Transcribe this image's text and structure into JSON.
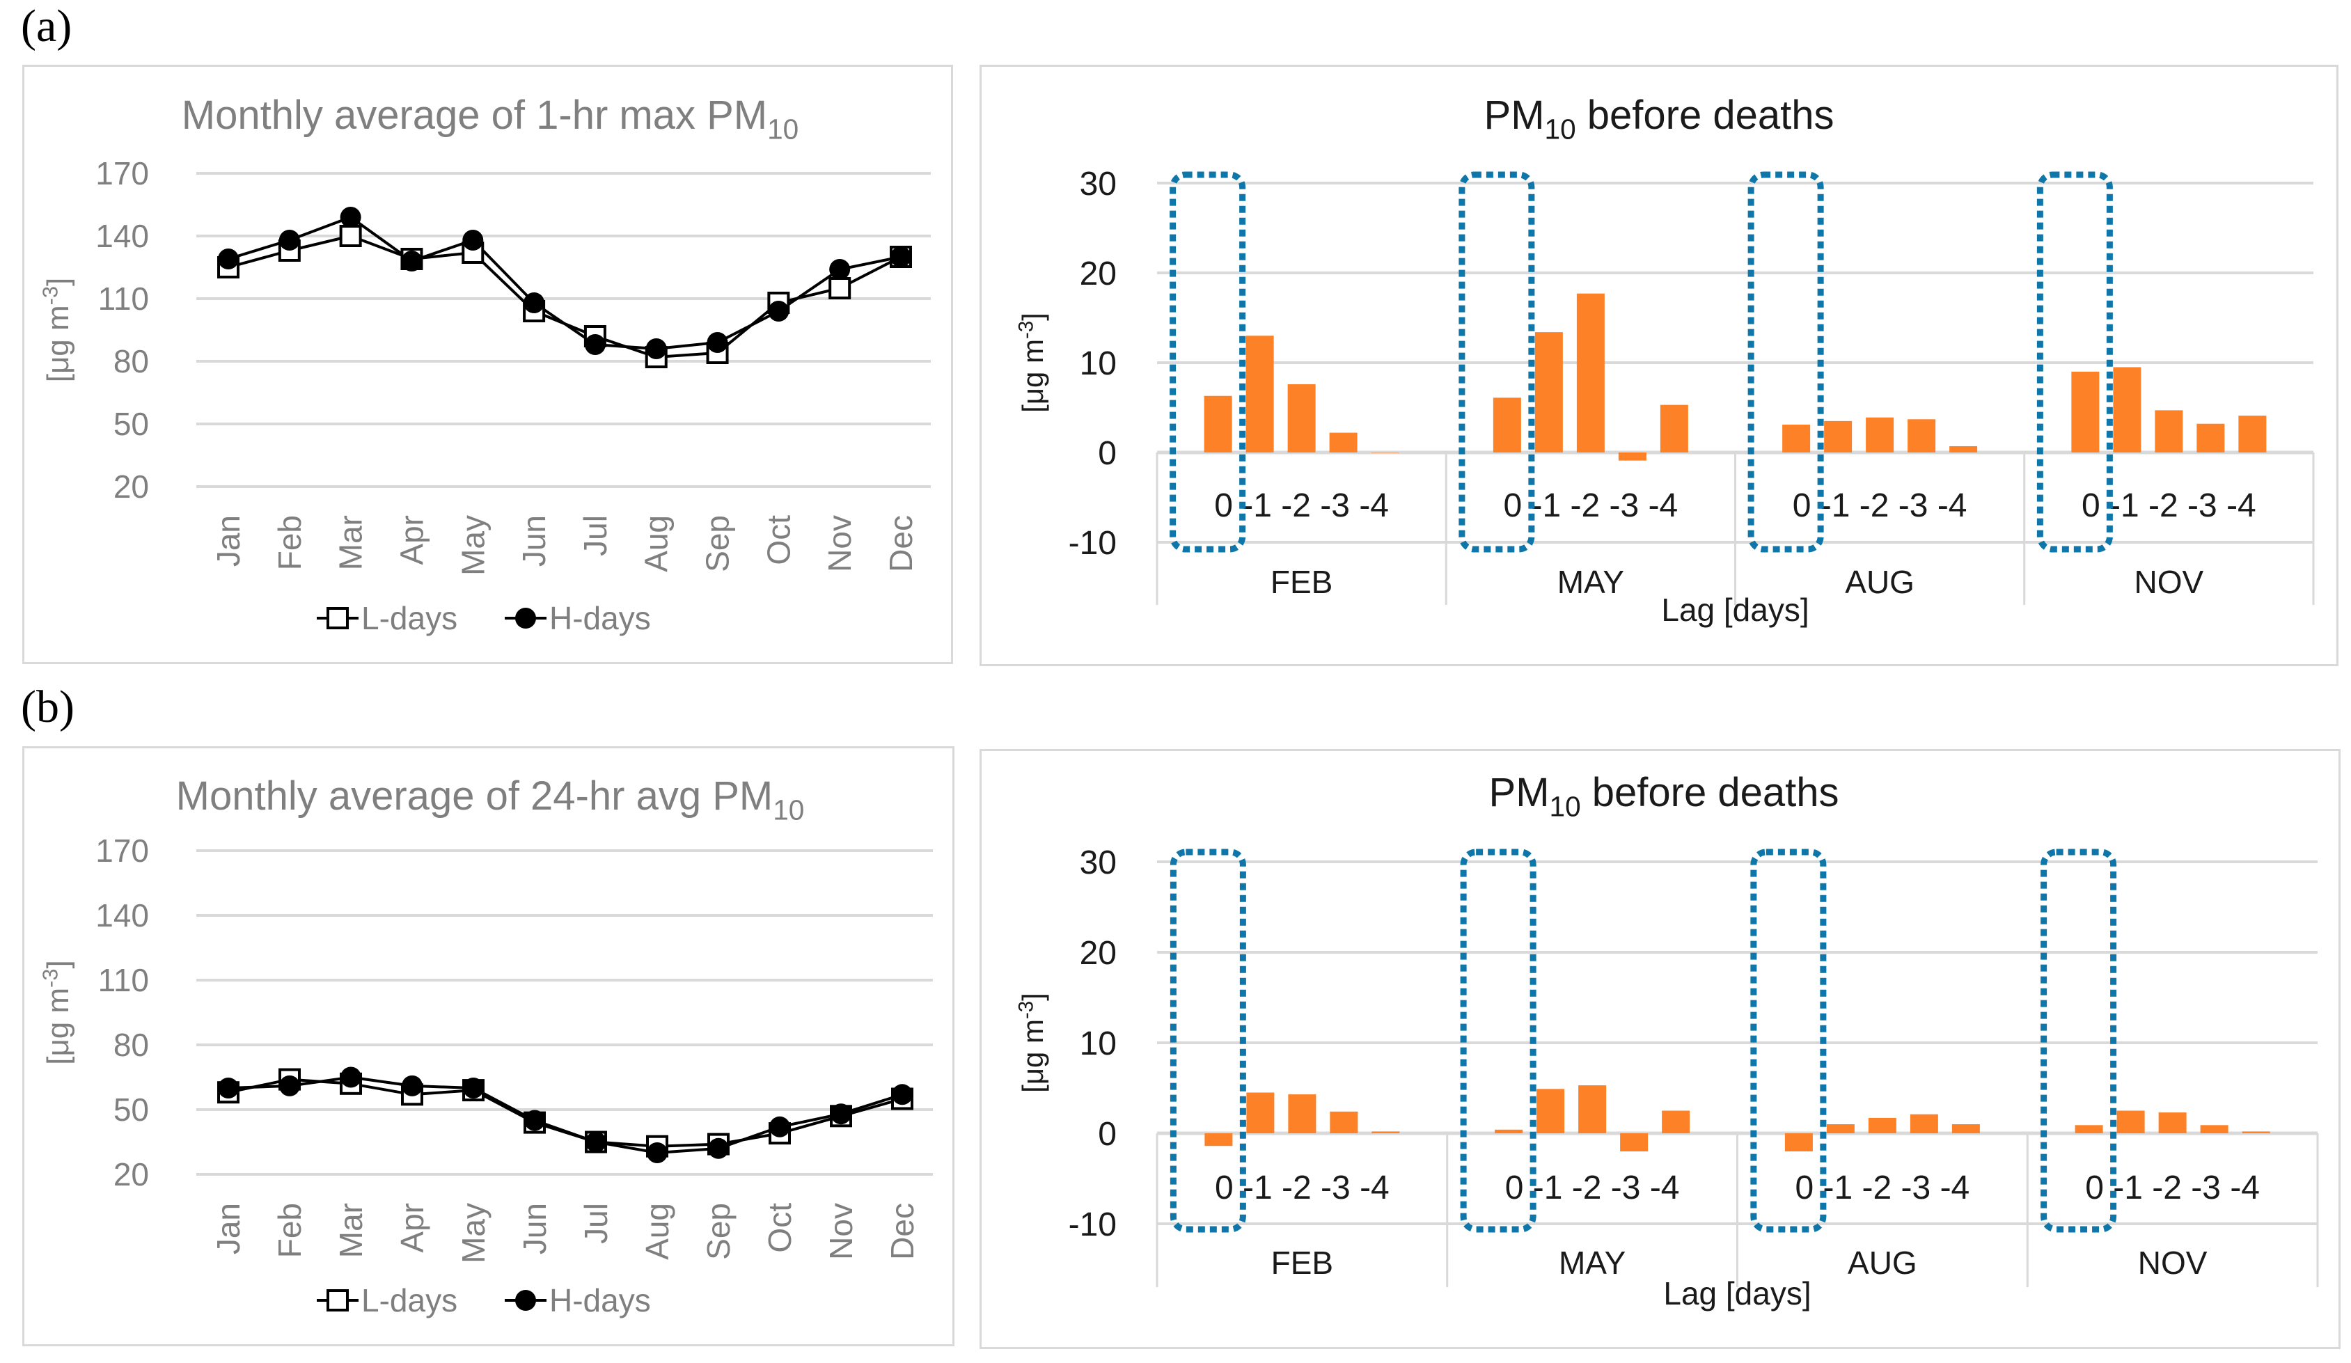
{
  "labels": {
    "a": "(a)",
    "b": "(b)"
  },
  "chart_data": [
    {
      "id": "a-line",
      "type": "line",
      "title": "Monthly average of 1-hr max PM",
      "title_sub": "10",
      "ylabel": "[μg m",
      "ylabel_sup": "-3",
      "ylabel_end": "]",
      "ylim": [
        20,
        170
      ],
      "yticks": [
        20,
        50,
        80,
        110,
        140,
        170
      ],
      "grid": true,
      "categories": [
        "Jan",
        "Feb",
        "Mar",
        "Apr",
        "May",
        "Jun",
        "Jul",
        "Aug",
        "Sep",
        "Oct",
        "Nov",
        "Dec"
      ],
      "legend_position": "bottom",
      "series": [
        {
          "name": "L-days",
          "marker": "open-square",
          "values": [
            125,
            133,
            140,
            129,
            132,
            104,
            92,
            82,
            84,
            108,
            115,
            130
          ]
        },
        {
          "name": "H-days",
          "marker": "filled-circle",
          "values": [
            129,
            138,
            149,
            128,
            138,
            108,
            88,
            86,
            89,
            104,
            124,
            130
          ]
        }
      ]
    },
    {
      "id": "a-bar",
      "type": "bar",
      "title": "PM",
      "title_sub": "10",
      "title_end": " before deaths",
      "ylabel": "[μg m",
      "ylabel_sup": "-3",
      "ylabel_end": "]",
      "xlabel": "Lag [days]",
      "ylim": [
        -10,
        30
      ],
      "yticks": [
        -10,
        0,
        10,
        20,
        30
      ],
      "grid": true,
      "groups": [
        "FEB",
        "MAY",
        "AUG",
        "NOV"
      ],
      "lags": [
        "0",
        "-1",
        "-2",
        "-3",
        "-4"
      ],
      "highlight": "lag 0 (dotted box)",
      "values": [
        [
          6.3,
          13.0,
          7.6,
          2.2,
          0.0
        ],
        [
          6.1,
          13.4,
          17.7,
          -0.9,
          5.3
        ],
        [
          3.1,
          3.5,
          3.9,
          3.7,
          0.7
        ],
        [
          9.0,
          9.5,
          4.7,
          3.2,
          4.1
        ]
      ],
      "bar_color": "#fd8127",
      "box_color": "#0e76a8"
    },
    {
      "id": "b-line",
      "type": "line",
      "title": "Monthly average of 24-hr avg PM",
      "title_sub": "10",
      "ylabel": "[μg m",
      "ylabel_sup": "-3",
      "ylabel_end": "]",
      "ylim": [
        20,
        170
      ],
      "yticks": [
        20,
        50,
        80,
        110,
        140,
        170
      ],
      "grid": true,
      "categories": [
        "Jan",
        "Feb",
        "Mar",
        "Apr",
        "May",
        "Jun",
        "Jul",
        "Aug",
        "Sep",
        "Oct",
        "Nov",
        "Dec"
      ],
      "legend_position": "bottom",
      "series": [
        {
          "name": "L-days",
          "marker": "open-square",
          "values": [
            58,
            64,
            62,
            57,
            59,
            44,
            35,
            33,
            34,
            39,
            47,
            55
          ]
        },
        {
          "name": "H-days",
          "marker": "filled-circle",
          "values": [
            60,
            61,
            65,
            61,
            60,
            45,
            35,
            30,
            32,
            42,
            48,
            57
          ]
        }
      ]
    },
    {
      "id": "b-bar",
      "type": "bar",
      "title": "PM",
      "title_sub": "10",
      "title_end": " before deaths",
      "ylabel": "[μg m",
      "ylabel_sup": "-3",
      "ylabel_end": "]",
      "xlabel": "Lag [days]",
      "ylim": [
        -10,
        30
      ],
      "yticks": [
        -10,
        0,
        10,
        20,
        30
      ],
      "grid": true,
      "groups": [
        "FEB",
        "MAY",
        "AUG",
        "NOV"
      ],
      "lags": [
        "0",
        "-1",
        "-2",
        "-3",
        "-4"
      ],
      "highlight": "lag 0 (dotted box)",
      "values": [
        [
          -1.4,
          4.5,
          4.3,
          2.4,
          0.2
        ],
        [
          0.4,
          4.9,
          5.3,
          -2.0,
          2.5
        ],
        [
          -2.0,
          1.0,
          1.7,
          2.1,
          1.0
        ],
        [
          0.9,
          2.5,
          2.3,
          0.9,
          0.2
        ]
      ],
      "bar_color": "#fd8127",
      "box_color": "#0e76a8"
    }
  ]
}
